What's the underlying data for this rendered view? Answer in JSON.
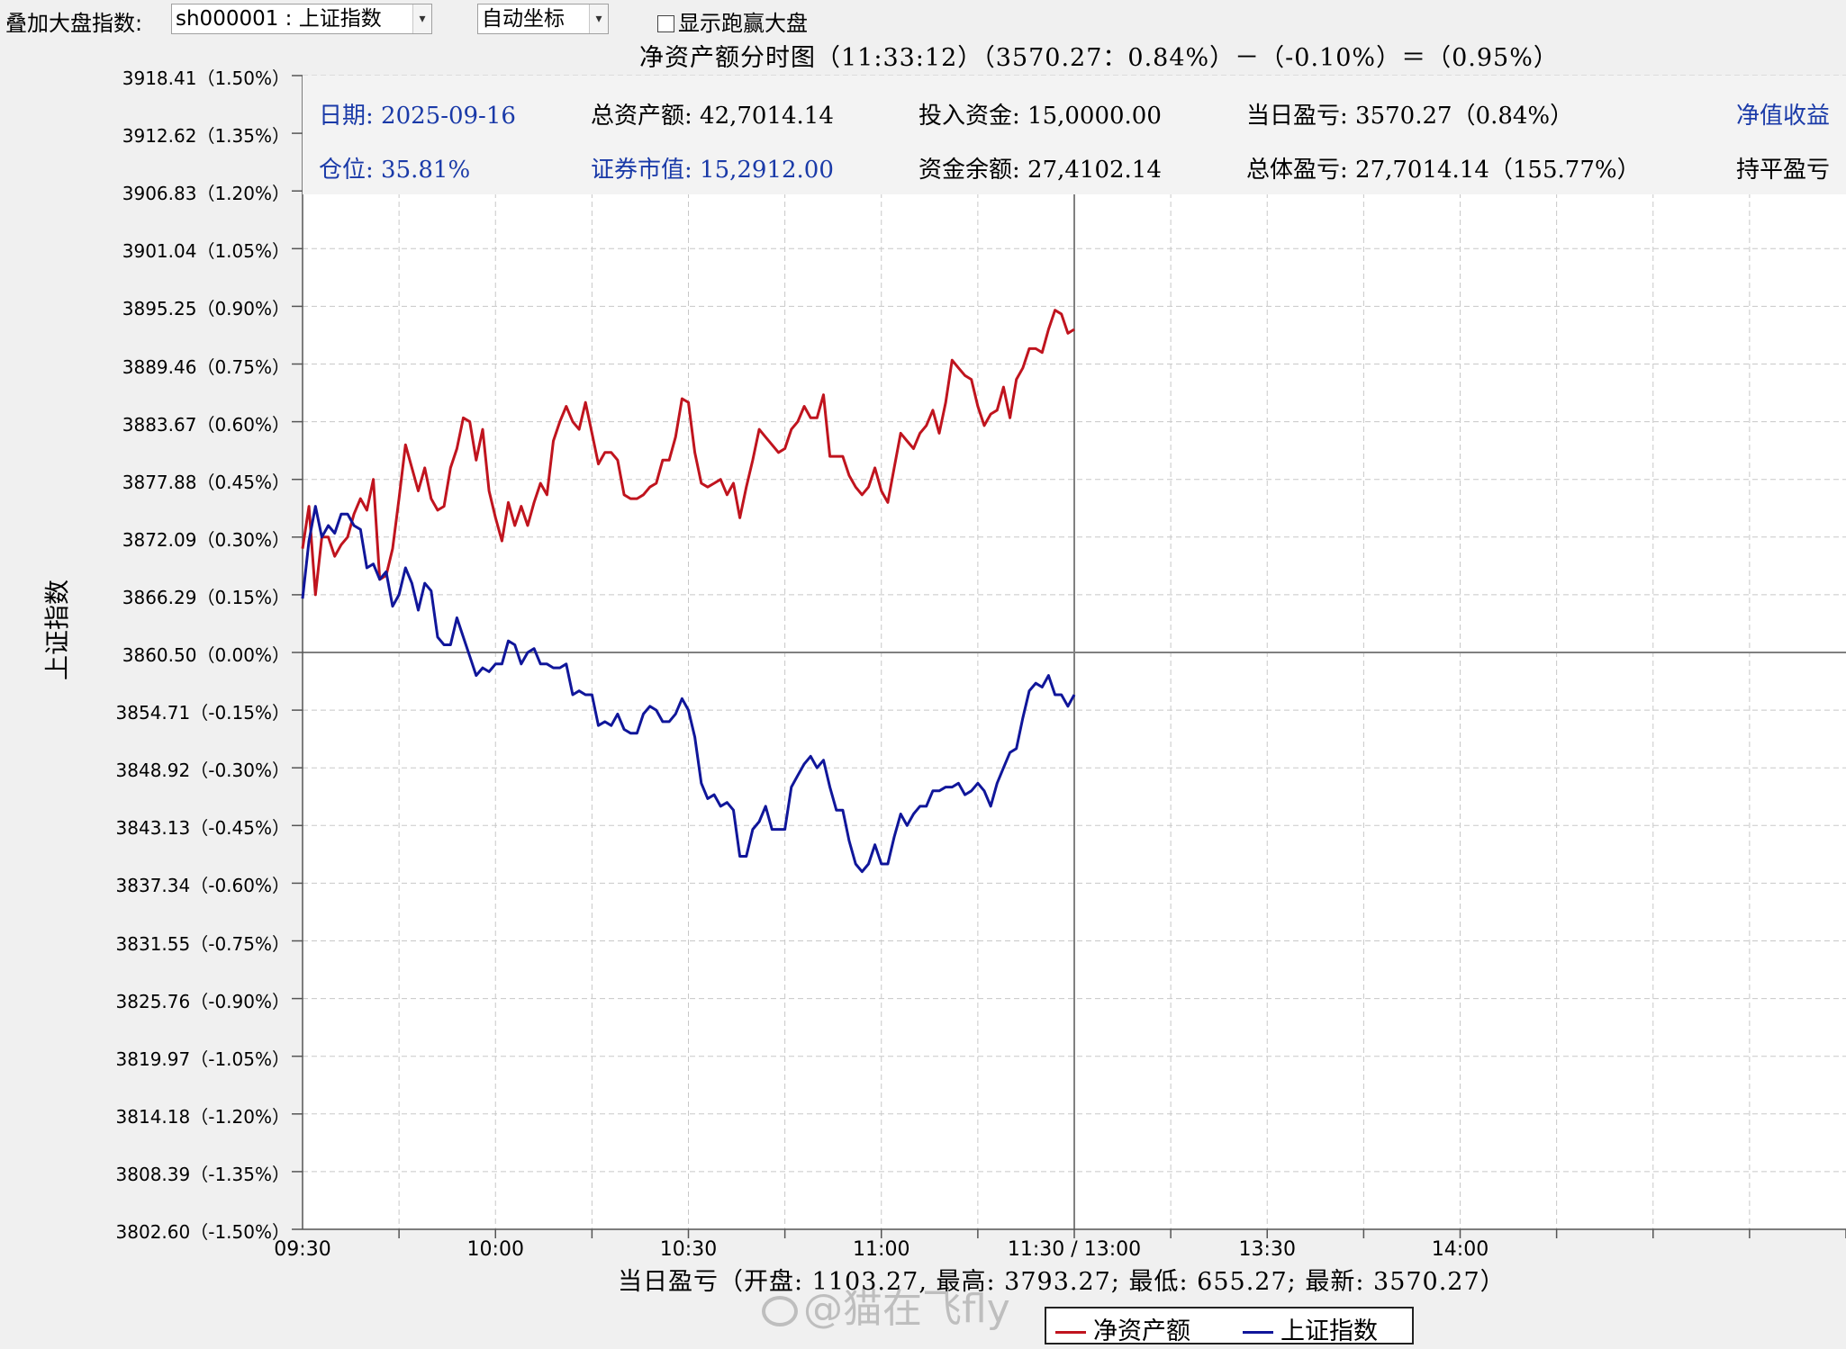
{
  "toolbar": {
    "overlay_label": "叠加大盘指数:",
    "index_select_value": "sh000001 : 上证指数",
    "coord_select_value": "自动坐标",
    "show_benchmark_label": "显示跑赢大盘"
  },
  "title": "净资产额分时图（11:33:12）（3570.27：0.84%）－（-0.10%）＝（0.95%）",
  "info": {
    "date": "日期: 2025-09-16",
    "position": "仓位: 35.81%",
    "total_assets": "总资产额: 42,7014.14",
    "securities_value": "证券市值: 15,2912.00",
    "invested": "投入资金: 15,0000.00",
    "cash_balance": "资金余额: 27,4102.14",
    "daily_pnl": "当日盈亏: 3570.27（0.84%）",
    "total_pnl": "总体盈亏: 27,7014.14（155.77%）",
    "nav_return": "净值收益",
    "breakeven": "持平盈亏"
  },
  "summary": "当日盈亏（开盘: 1103.27, 最高: 3793.27; 最低: 655.27; 最新: 3570.27）",
  "watermark": "@猫在飞fly",
  "chart_data": {
    "type": "line",
    "ylabel": "上证指数",
    "yaxis_ticks": [
      "3918.41（1.50%）",
      "3912.62（1.35%）",
      "3906.83（1.20%）",
      "3901.04（1.05%）",
      "3895.25（0.90%）",
      "3889.46（0.75%）",
      "3883.67（0.60%）",
      "3877.88（0.45%）",
      "3872.09（0.30%）",
      "3866.29（0.15%）",
      "3860.50（0.00%）",
      "3854.71（-0.15%）",
      "3848.92（-0.30%）",
      "3843.13（-0.45%）",
      "3837.34（-0.60%）",
      "3831.55（-0.75%）",
      "3825.76（-0.90%）",
      "3819.97（-1.05%）",
      "3814.18（-1.20%）",
      "3808.39（-1.35%）",
      "3802.60（-1.50%）"
    ],
    "ylim_pct": [
      -1.5,
      1.5
    ],
    "baseline": "3860.50",
    "xaxis_ticks": [
      "09:30",
      "10:00",
      "10:30",
      "11:00",
      "11:30 / 13:00",
      "13:30",
      "14:00"
    ],
    "session_minutes_total": 240,
    "current_minute": 120,
    "grid": true,
    "legend_position": "bottom-right",
    "series": [
      {
        "name": "净资产额",
        "color": "#c0141e",
        "unit": "pct",
        "points": [
          [
            0,
            0.27
          ],
          [
            1,
            0.38
          ],
          [
            2,
            0.15
          ],
          [
            3,
            0.3
          ],
          [
            4,
            0.3
          ],
          [
            5,
            0.25
          ],
          [
            6,
            0.28
          ],
          [
            7,
            0.3
          ],
          [
            8,
            0.36
          ],
          [
            9,
            0.4
          ],
          [
            10,
            0.37
          ],
          [
            11,
            0.45
          ],
          [
            12,
            0.19
          ],
          [
            13,
            0.2
          ],
          [
            14,
            0.27
          ],
          [
            15,
            0.4
          ],
          [
            16,
            0.54
          ],
          [
            17,
            0.48
          ],
          [
            18,
            0.42
          ],
          [
            19,
            0.48
          ],
          [
            20,
            0.4
          ],
          [
            21,
            0.37
          ],
          [
            22,
            0.38
          ],
          [
            23,
            0.48
          ],
          [
            24,
            0.53
          ],
          [
            25,
            0.61
          ],
          [
            26,
            0.6
          ],
          [
            27,
            0.5
          ],
          [
            28,
            0.58
          ],
          [
            29,
            0.42
          ],
          [
            30,
            0.35
          ],
          [
            31,
            0.29
          ],
          [
            32,
            0.39
          ],
          [
            33,
            0.33
          ],
          [
            34,
            0.38
          ],
          [
            35,
            0.33
          ],
          [
            36,
            0.39
          ],
          [
            37,
            0.44
          ],
          [
            38,
            0.41
          ],
          [
            39,
            0.55
          ],
          [
            40,
            0.6
          ],
          [
            41,
            0.64
          ],
          [
            42,
            0.6
          ],
          [
            43,
            0.58
          ],
          [
            44,
            0.65
          ],
          [
            45,
            0.57
          ],
          [
            46,
            0.49
          ],
          [
            47,
            0.52
          ],
          [
            48,
            0.52
          ],
          [
            49,
            0.5
          ],
          [
            50,
            0.41
          ],
          [
            51,
            0.4
          ],
          [
            52,
            0.4
          ],
          [
            53,
            0.41
          ],
          [
            54,
            0.43
          ],
          [
            55,
            0.44
          ],
          [
            56,
            0.5
          ],
          [
            57,
            0.5
          ],
          [
            58,
            0.56
          ],
          [
            59,
            0.66
          ],
          [
            60,
            0.65
          ],
          [
            61,
            0.52
          ],
          [
            62,
            0.44
          ],
          [
            63,
            0.43
          ],
          [
            64,
            0.44
          ],
          [
            65,
            0.45
          ],
          [
            66,
            0.41
          ],
          [
            67,
            0.44
          ],
          [
            68,
            0.35
          ],
          [
            69,
            0.43
          ],
          [
            70,
            0.5
          ],
          [
            71,
            0.58
          ],
          [
            72,
            0.56
          ],
          [
            73,
            0.54
          ],
          [
            74,
            0.52
          ],
          [
            75,
            0.53
          ],
          [
            76,
            0.58
          ],
          [
            77,
            0.6
          ],
          [
            78,
            0.64
          ],
          [
            79,
            0.61
          ],
          [
            80,
            0.61
          ],
          [
            81,
            0.67
          ],
          [
            82,
            0.51
          ],
          [
            83,
            0.51
          ],
          [
            84,
            0.51
          ],
          [
            85,
            0.46
          ],
          [
            86,
            0.43
          ],
          [
            87,
            0.41
          ],
          [
            88,
            0.43
          ],
          [
            89,
            0.48
          ],
          [
            90,
            0.42
          ],
          [
            91,
            0.39
          ],
          [
            92,
            0.48
          ],
          [
            93,
            0.57
          ],
          [
            94,
            0.55
          ],
          [
            95,
            0.53
          ],
          [
            96,
            0.57
          ],
          [
            97,
            0.59
          ],
          [
            98,
            0.63
          ],
          [
            99,
            0.57
          ],
          [
            100,
            0.65
          ],
          [
            101,
            0.76
          ],
          [
            102,
            0.74
          ],
          [
            103,
            0.72
          ],
          [
            104,
            0.71
          ],
          [
            105,
            0.64
          ],
          [
            106,
            0.59
          ],
          [
            107,
            0.62
          ],
          [
            108,
            0.63
          ],
          [
            109,
            0.69
          ],
          [
            110,
            0.61
          ],
          [
            111,
            0.71
          ],
          [
            112,
            0.74
          ],
          [
            113,
            0.79
          ],
          [
            114,
            0.79
          ],
          [
            115,
            0.78
          ],
          [
            116,
            0.84
          ],
          [
            117,
            0.89
          ],
          [
            118,
            0.88
          ],
          [
            119,
            0.83
          ],
          [
            120,
            0.84
          ]
        ]
      },
      {
        "name": "上证指数",
        "color": "#10169a",
        "unit": "pct",
        "points": [
          [
            0,
            0.14
          ],
          [
            1,
            0.29
          ],
          [
            2,
            0.38
          ],
          [
            3,
            0.3
          ],
          [
            4,
            0.33
          ],
          [
            5,
            0.31
          ],
          [
            6,
            0.36
          ],
          [
            7,
            0.36
          ],
          [
            8,
            0.33
          ],
          [
            9,
            0.32
          ],
          [
            10,
            0.22
          ],
          [
            11,
            0.23
          ],
          [
            12,
            0.19
          ],
          [
            13,
            0.21
          ],
          [
            14,
            0.12
          ],
          [
            15,
            0.15
          ],
          [
            16,
            0.22
          ],
          [
            17,
            0.18
          ],
          [
            18,
            0.11
          ],
          [
            19,
            0.18
          ],
          [
            20,
            0.16
          ],
          [
            21,
            0.04
          ],
          [
            22,
            0.02
          ],
          [
            23,
            0.02
          ],
          [
            24,
            0.09
          ],
          [
            25,
            0.04
          ],
          [
            26,
            -0.01
          ],
          [
            27,
            -0.06
          ],
          [
            28,
            -0.04
          ],
          [
            29,
            -0.05
          ],
          [
            30,
            -0.03
          ],
          [
            31,
            -0.03
          ],
          [
            32,
            0.03
          ],
          [
            33,
            0.02
          ],
          [
            34,
            -0.03
          ],
          [
            35,
            0.0
          ],
          [
            36,
            0.01
          ],
          [
            37,
            -0.03
          ],
          [
            38,
            -0.03
          ],
          [
            39,
            -0.04
          ],
          [
            40,
            -0.04
          ],
          [
            41,
            -0.03
          ],
          [
            42,
            -0.11
          ],
          [
            43,
            -0.1
          ],
          [
            44,
            -0.11
          ],
          [
            45,
            -0.11
          ],
          [
            46,
            -0.19
          ],
          [
            47,
            -0.18
          ],
          [
            48,
            -0.19
          ],
          [
            49,
            -0.16
          ],
          [
            50,
            -0.2
          ],
          [
            51,
            -0.21
          ],
          [
            52,
            -0.21
          ],
          [
            53,
            -0.16
          ],
          [
            54,
            -0.14
          ],
          [
            55,
            -0.15
          ],
          [
            56,
            -0.18
          ],
          [
            57,
            -0.18
          ],
          [
            58,
            -0.16
          ],
          [
            59,
            -0.12
          ],
          [
            60,
            -0.15
          ],
          [
            61,
            -0.22
          ],
          [
            62,
            -0.34
          ],
          [
            63,
            -0.38
          ],
          [
            64,
            -0.37
          ],
          [
            65,
            -0.4
          ],
          [
            66,
            -0.39
          ],
          [
            67,
            -0.41
          ],
          [
            68,
            -0.53
          ],
          [
            69,
            -0.53
          ],
          [
            70,
            -0.46
          ],
          [
            71,
            -0.44
          ],
          [
            72,
            -0.4
          ],
          [
            73,
            -0.46
          ],
          [
            74,
            -0.46
          ],
          [
            75,
            -0.46
          ],
          [
            76,
            -0.35
          ],
          [
            77,
            -0.32
          ],
          [
            78,
            -0.29
          ],
          [
            79,
            -0.27
          ],
          [
            80,
            -0.3
          ],
          [
            81,
            -0.28
          ],
          [
            82,
            -0.35
          ],
          [
            83,
            -0.41
          ],
          [
            84,
            -0.41
          ],
          [
            85,
            -0.49
          ],
          [
            86,
            -0.55
          ],
          [
            87,
            -0.57
          ],
          [
            88,
            -0.55
          ],
          [
            89,
            -0.5
          ],
          [
            90,
            -0.55
          ],
          [
            91,
            -0.55
          ],
          [
            92,
            -0.48
          ],
          [
            93,
            -0.42
          ],
          [
            94,
            -0.45
          ],
          [
            95,
            -0.42
          ],
          [
            96,
            -0.4
          ],
          [
            97,
            -0.4
          ],
          [
            98,
            -0.36
          ],
          [
            99,
            -0.36
          ],
          [
            100,
            -0.35
          ],
          [
            101,
            -0.35
          ],
          [
            102,
            -0.34
          ],
          [
            103,
            -0.37
          ],
          [
            104,
            -0.36
          ],
          [
            105,
            -0.34
          ],
          [
            106,
            -0.36
          ],
          [
            107,
            -0.4
          ],
          [
            108,
            -0.34
          ],
          [
            109,
            -0.3
          ],
          [
            110,
            -0.26
          ],
          [
            111,
            -0.25
          ],
          [
            112,
            -0.17
          ],
          [
            113,
            -0.1
          ],
          [
            114,
            -0.08
          ],
          [
            115,
            -0.09
          ],
          [
            116,
            -0.06
          ],
          [
            117,
            -0.11
          ],
          [
            118,
            -0.11
          ],
          [
            119,
            -0.14
          ],
          [
            120,
            -0.11
          ]
        ]
      }
    ]
  }
}
